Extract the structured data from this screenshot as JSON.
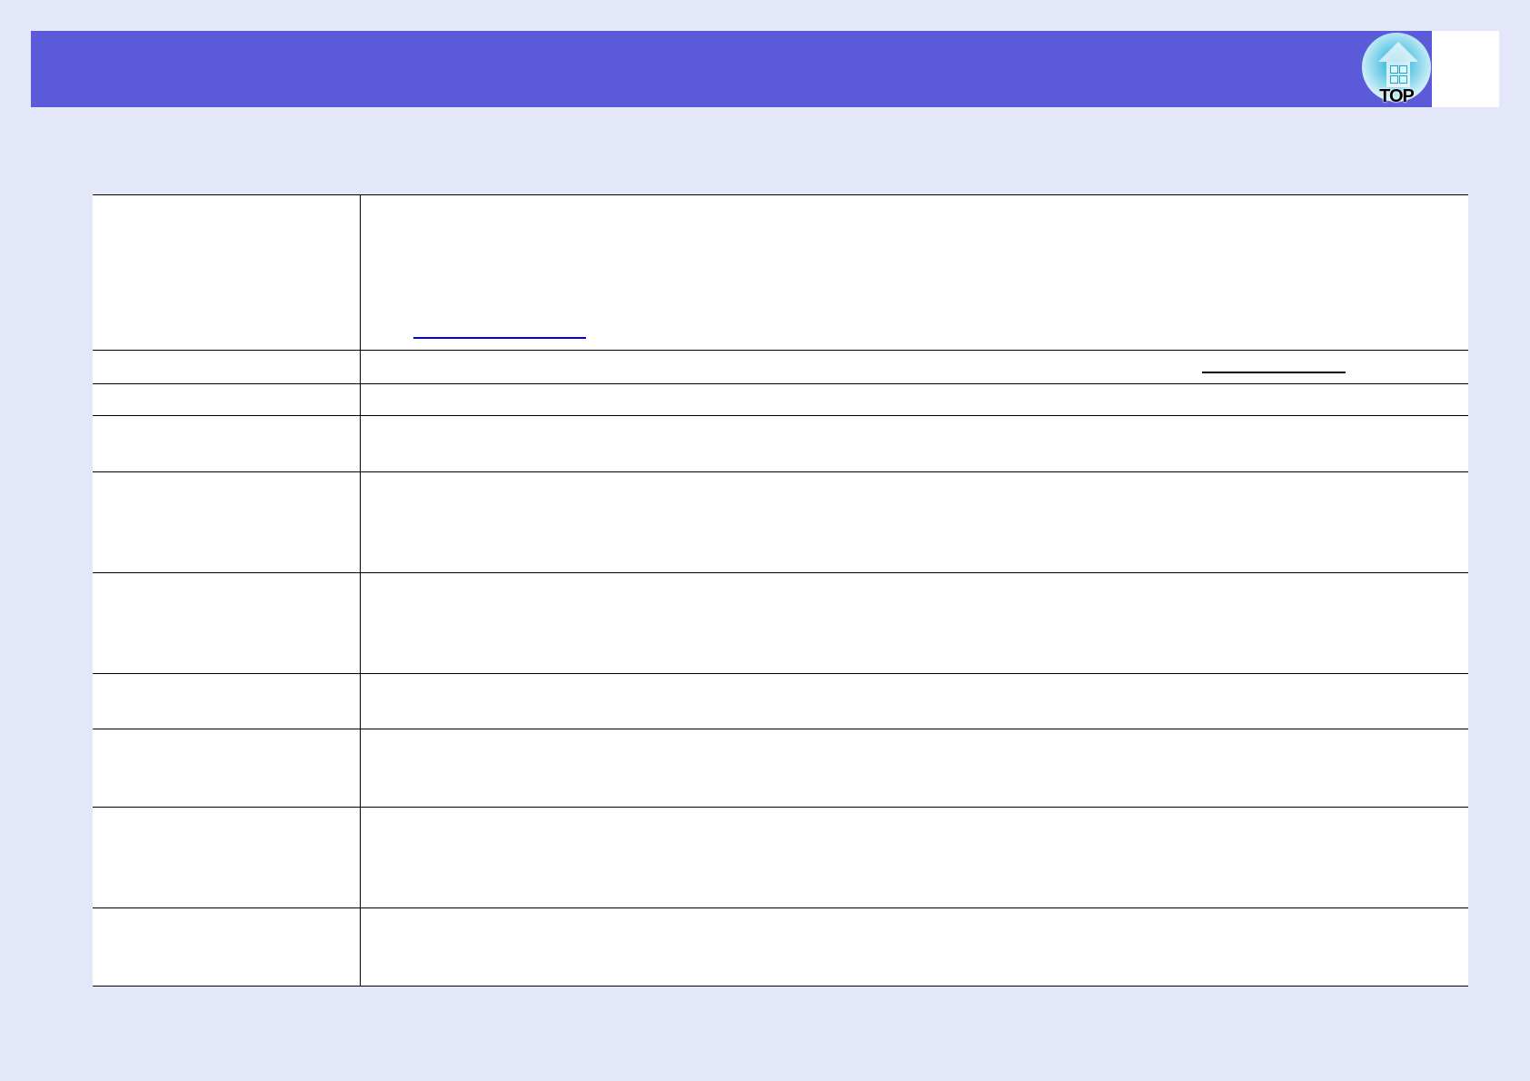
{
  "header": {
    "top_button": {
      "label": "TOP",
      "icon": "home-globe-icon"
    },
    "color": "#5b5bd9"
  },
  "table": {
    "rows": 10,
    "links": [
      {
        "color": "#0000ee",
        "row": 1
      },
      {
        "color": "#000000",
        "row": 2
      }
    ]
  }
}
